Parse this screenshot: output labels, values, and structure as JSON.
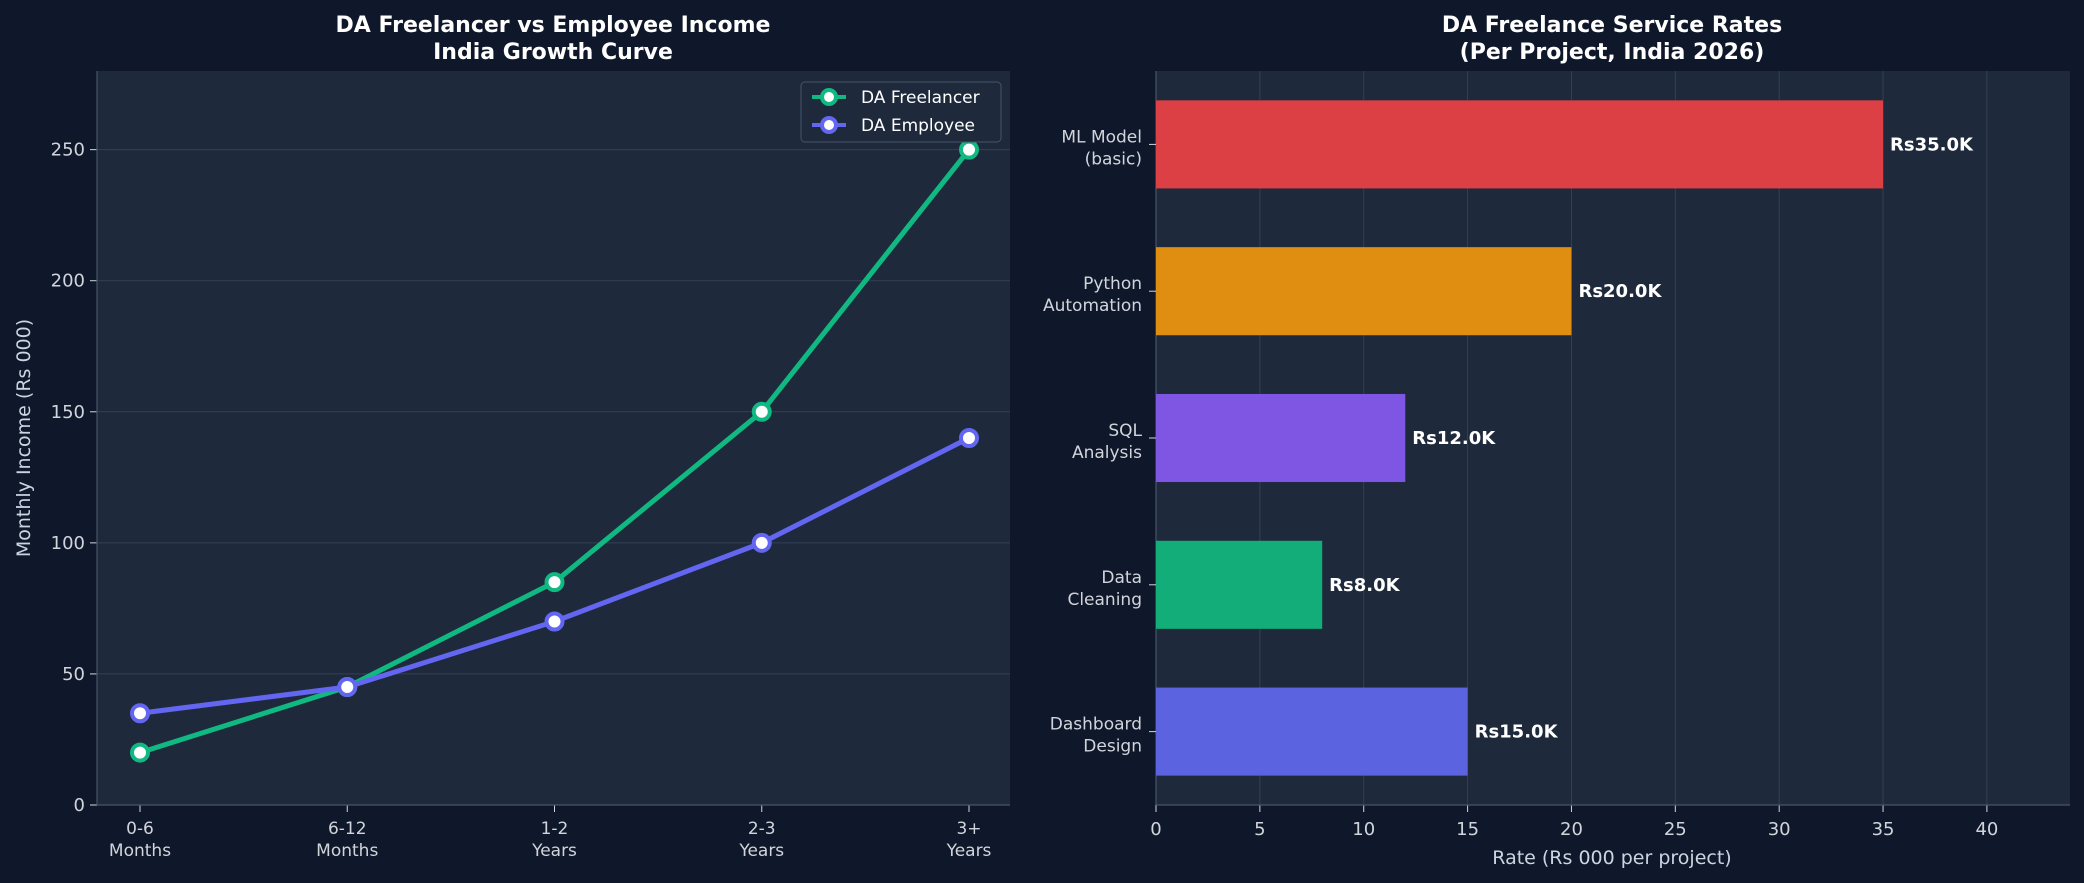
{
  "colors": {
    "page_bg": "#0f172a",
    "panel_bg": "#1e293b",
    "grid": "#334155",
    "text": "#d1d5db"
  },
  "chart_data": [
    {
      "type": "line",
      "title_lines": [
        "DA Freelancer vs Employee Income",
        "India Growth Curve"
      ],
      "ylabel": "Monthly Income (Rs 000)",
      "xlabel": "",
      "categories": [
        [
          "0-6",
          "Months"
        ],
        [
          "6-12",
          "Months"
        ],
        [
          "1-2",
          "Years"
        ],
        [
          "2-3",
          "Years"
        ],
        [
          "3+",
          "Years"
        ]
      ],
      "ylim": [
        0,
        280
      ],
      "yticks": [
        0,
        50,
        100,
        150,
        200,
        250
      ],
      "grid": true,
      "legend_position": "top-right",
      "series": [
        {
          "name": "DA Freelancer",
          "color": "#10b981",
          "values": [
            20,
            45,
            85,
            150,
            250
          ]
        },
        {
          "name": "DA Employee",
          "color": "#6366f1",
          "values": [
            35,
            45,
            70,
            100,
            140
          ]
        }
      ]
    },
    {
      "type": "bar",
      "orientation": "horizontal",
      "title_lines": [
        "DA Freelance Service Rates",
        "(Per Project, India 2026)"
      ],
      "xlabel": "Rate (Rs 000 per project)",
      "ylabel": "",
      "xlim": [
        0,
        44
      ],
      "xticks": [
        0,
        5,
        10,
        15,
        20,
        25,
        30,
        35,
        40
      ],
      "grid": true,
      "bars": [
        {
          "label": [
            "ML Model",
            "(basic)"
          ],
          "value": 35,
          "value_label": "Rs35.0K",
          "color": "#dc4045"
        },
        {
          "label": [
            "Python",
            "Automation"
          ],
          "value": 20,
          "value_label": "Rs20.0K",
          "color": "#e08e12"
        },
        {
          "label": [
            "SQL",
            "Analysis"
          ],
          "value": 12,
          "value_label": "Rs12.0K",
          "color": "#7f56e4"
        },
        {
          "label": [
            "Data",
            "Cleaning"
          ],
          "value": 8,
          "value_label": "Rs8.0K",
          "color": "#12ad79"
        },
        {
          "label": [
            "Dashboard",
            "Design"
          ],
          "value": 15,
          "value_label": "Rs15.0K",
          "color": "#5c63e0"
        }
      ]
    }
  ]
}
